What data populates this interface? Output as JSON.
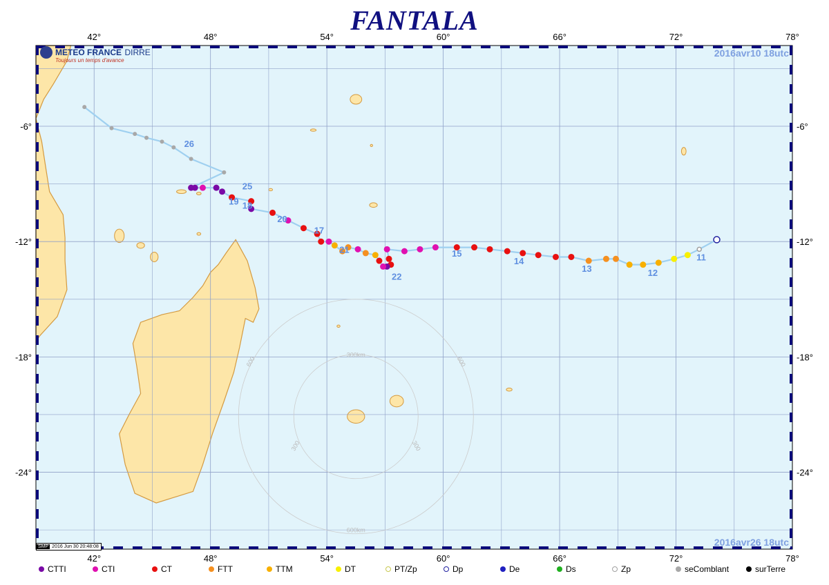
{
  "title": "FANTALA",
  "logo": {
    "name": "METEO FRANCE",
    "dept": "DIRRE",
    "tagline": "Toujours un temps d'avance"
  },
  "date_start": "2016avr10  18utc",
  "date_end": "2016avr26  18utc",
  "stamp": {
    "badge": "SMP",
    "text": "2016 Jun 30 20:48:08"
  },
  "lon_ticks": [
    "42°",
    "48°",
    "54°",
    "60°",
    "66°",
    "72°",
    "78°"
  ],
  "lat_ticks": [
    "-6°",
    "-12°",
    "-18°",
    "-24°"
  ],
  "range_rings": {
    "inner": "300km",
    "outer": "600km",
    "inner_side": "300",
    "outer_side": "600"
  },
  "colors": {
    "ocean": "#e2f4fb",
    "land": "#fde6a8",
    "coast": "#d49a40",
    "grid": "#8fa0c8",
    "track": "#9fd0f0"
  },
  "legend": [
    {
      "label": "CTTI",
      "color": "#7a0aa6",
      "style": "filled"
    },
    {
      "label": "CTI",
      "color": "#e010b0",
      "style": "filled"
    },
    {
      "label": "CT",
      "color": "#e81010",
      "style": "filled"
    },
    {
      "label": "FTT",
      "color": "#f59020",
      "style": "filled"
    },
    {
      "label": "TTM",
      "color": "#f8b000",
      "style": "filled"
    },
    {
      "label": "DT",
      "color": "#f8f000",
      "style": "filled"
    },
    {
      "label": "PT/Zp",
      "color": "#c8c850",
      "style": "ring"
    },
    {
      "label": "Dp",
      "color": "#2020a0",
      "style": "ring"
    },
    {
      "label": "De",
      "color": "#2020c0",
      "style": "filled"
    },
    {
      "label": "Ds",
      "color": "#20b020",
      "style": "filled"
    },
    {
      "label": "Zp",
      "color": "#a0a0a0",
      "style": "ring"
    },
    {
      "label": "seComblant",
      "color": "#a8a8a8",
      "style": "filled"
    },
    {
      "label": "surTerre",
      "color": "#000000",
      "style": "filled"
    }
  ],
  "day_labels": [
    {
      "day": "11",
      "lon": 73.3,
      "lat": -12.8
    },
    {
      "day": "12",
      "lon": 70.8,
      "lat": -13.6
    },
    {
      "day": "13",
      "lon": 67.4,
      "lat": -13.4
    },
    {
      "day": "14",
      "lon": 63.9,
      "lat": -13.0
    },
    {
      "day": "15",
      "lon": 60.7,
      "lat": -12.6
    },
    {
      "day": "21",
      "lon": 54.9,
      "lat": -12.4
    },
    {
      "day": "22",
      "lon": 57.6,
      "lat": -13.8
    },
    {
      "day": "17",
      "lon": 53.6,
      "lat": -11.4
    },
    {
      "day": "20",
      "lon": 51.7,
      "lat": -10.8
    },
    {
      "day": "18",
      "lon": 49.9,
      "lat": -10.1
    },
    {
      "day": "19",
      "lon": 49.2,
      "lat": -9.9
    },
    {
      "day": "25",
      "lon": 49.9,
      "lat": -9.1
    },
    {
      "day": "26",
      "lon": 46.9,
      "lat": -6.9
    }
  ],
  "track": [
    {
      "lon": 74.1,
      "lat": -11.9,
      "cat": "Dp"
    },
    {
      "lon": 73.2,
      "lat": -12.4,
      "cat": "Zp"
    },
    {
      "lon": 72.6,
      "lat": -12.7,
      "cat": "DT"
    },
    {
      "lon": 71.9,
      "lat": -12.9,
      "cat": "DT"
    },
    {
      "lon": 71.1,
      "lat": -13.1,
      "cat": "TTM"
    },
    {
      "lon": 70.3,
      "lat": -13.2,
      "cat": "TTM"
    },
    {
      "lon": 69.6,
      "lat": -13.2,
      "cat": "TTM"
    },
    {
      "lon": 68.9,
      "lat": -12.9,
      "cat": "FTT"
    },
    {
      "lon": 68.4,
      "lat": -12.9,
      "cat": "FTT"
    },
    {
      "lon": 67.5,
      "lat": -13.0,
      "cat": "FTT"
    },
    {
      "lon": 66.6,
      "lat": -12.8,
      "cat": "CT"
    },
    {
      "lon": 65.8,
      "lat": -12.8,
      "cat": "CT"
    },
    {
      "lon": 64.9,
      "lat": -12.7,
      "cat": "CT"
    },
    {
      "lon": 64.1,
      "lat": -12.6,
      "cat": "CT"
    },
    {
      "lon": 63.3,
      "lat": -12.5,
      "cat": "CT"
    },
    {
      "lon": 62.4,
      "lat": -12.4,
      "cat": "CT"
    },
    {
      "lon": 61.6,
      "lat": -12.3,
      "cat": "CT"
    },
    {
      "lon": 60.7,
      "lat": -12.3,
      "cat": "CT"
    },
    {
      "lon": 59.6,
      "lat": -12.3,
      "cat": "CTI"
    },
    {
      "lon": 58.8,
      "lat": -12.4,
      "cat": "CTI"
    },
    {
      "lon": 58.0,
      "lat": -12.5,
      "cat": "CTI"
    },
    {
      "lon": 57.1,
      "lat": -12.4,
      "cat": "CTI"
    },
    {
      "lon": 57.2,
      "lat": -12.9,
      "cat": "CT"
    },
    {
      "lon": 57.3,
      "lat": -13.2,
      "cat": "CT"
    },
    {
      "lon": 57.1,
      "lat": -13.3,
      "cat": "CTTI"
    },
    {
      "lon": 56.9,
      "lat": -13.3,
      "cat": "CTI"
    },
    {
      "lon": 56.7,
      "lat": -13.0,
      "cat": "CT"
    },
    {
      "lon": 56.5,
      "lat": -12.7,
      "cat": "TTM"
    },
    {
      "lon": 56.0,
      "lat": -12.6,
      "cat": "FTT"
    },
    {
      "lon": 55.6,
      "lat": -12.4,
      "cat": "CTI"
    },
    {
      "lon": 55.1,
      "lat": -12.3,
      "cat": "FTT"
    },
    {
      "lon": 54.8,
      "lat": -12.5,
      "cat": "FTT"
    },
    {
      "lon": 54.4,
      "lat": -12.2,
      "cat": "TTM"
    },
    {
      "lon": 54.1,
      "lat": -12.0,
      "cat": "CTI"
    },
    {
      "lon": 53.7,
      "lat": -12.0,
      "cat": "CT"
    },
    {
      "lon": 53.5,
      "lat": -11.6,
      "cat": "CT"
    },
    {
      "lon": 52.8,
      "lat": -11.3,
      "cat": "CT"
    },
    {
      "lon": 52.0,
      "lat": -10.9,
      "cat": "CTI"
    },
    {
      "lon": 51.2,
      "lat": -10.5,
      "cat": "CT"
    },
    {
      "lon": 50.1,
      "lat": -10.3,
      "cat": "CTTI"
    },
    {
      "lon": 50.1,
      "lat": -9.9,
      "cat": "CT"
    },
    {
      "lon": 49.1,
      "lat": -9.7,
      "cat": "CT"
    },
    {
      "lon": 48.6,
      "lat": -9.4,
      "cat": "CTTI"
    },
    {
      "lon": 48.3,
      "lat": -9.2,
      "cat": "CTTI"
    },
    {
      "lon": 47.6,
      "lat": -9.2,
      "cat": "CTI"
    },
    {
      "lon": 47.2,
      "lat": -9.2,
      "cat": "CTTI"
    },
    {
      "lon": 47.0,
      "lat": -9.2,
      "cat": "CTTI"
    },
    {
      "lon": 48.7,
      "lat": -8.4,
      "cat": "seComblant"
    },
    {
      "lon": 47.0,
      "lat": -7.7,
      "cat": "seComblant"
    },
    {
      "lon": 46.1,
      "lat": -7.1,
      "cat": "seComblant"
    },
    {
      "lon": 45.5,
      "lat": -6.8,
      "cat": "seComblant"
    },
    {
      "lon": 44.7,
      "lat": -6.6,
      "cat": "seComblant"
    },
    {
      "lon": 44.1,
      "lat": -6.4,
      "cat": "seComblant"
    },
    {
      "lon": 42.9,
      "lat": -6.1,
      "cat": "seComblant"
    },
    {
      "lon": 41.5,
      "lat": -5.0,
      "cat": "seComblant"
    }
  ]
}
